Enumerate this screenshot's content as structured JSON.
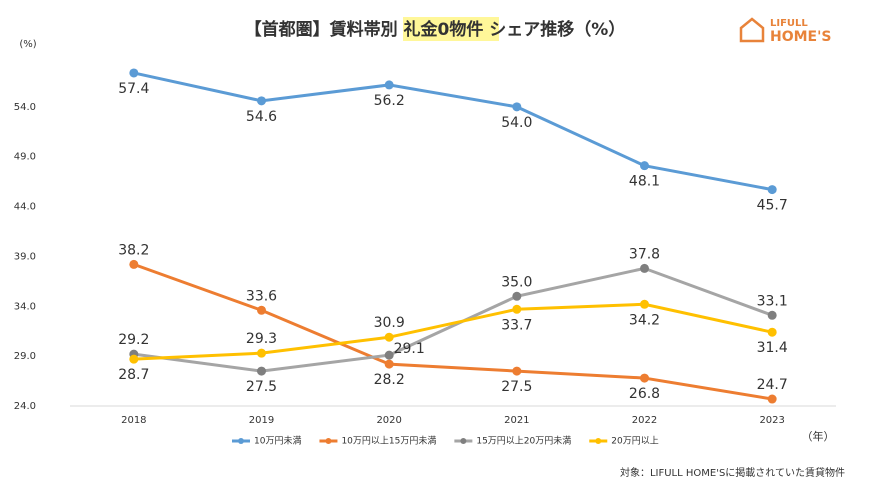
{
  "chart_data": {
    "type": "line",
    "title": "【首都圏】賃料帯別 礼金0物件 シェア推移（%）",
    "y_label": "(%)",
    "x_label": "（年）",
    "note": "対象：LIFULL HOME'Sに掲載されていた賃貸物件",
    "logo": {
      "top": "LIFULL",
      "bottom": "HOME'S"
    },
    "categories": [
      "2018",
      "2019",
      "2020",
      "2021",
      "2022",
      "2023"
    ],
    "ylim": [
      24,
      59.5
    ],
    "yticks": [
      {
        "value": 24,
        "label": "24.0"
      },
      {
        "value": 29,
        "label": "29.0"
      },
      {
        "value": 34,
        "label": "34.0"
      },
      {
        "value": 39,
        "label": "39.0"
      },
      {
        "value": 44,
        "label": "44.0"
      },
      {
        "value": 49,
        "label": "49.0"
      },
      {
        "value": 54,
        "label": "54.0"
      }
    ],
    "grid": false,
    "legend": "bottom",
    "series": [
      {
        "name": "10万円未満",
        "color": "#5b9bd5",
        "values": [
          57.4,
          54.6,
          56.2,
          54.0,
          48.1,
          45.7
        ],
        "value_labels": [
          "57.4",
          "54.6",
          "56.2",
          "54.0",
          "48.1",
          "45.7"
        ]
      },
      {
        "name": "10万円以上15万円未満",
        "color": "#ed7d31",
        "values": [
          38.2,
          33.6,
          28.2,
          27.5,
          26.8,
          24.7
        ],
        "value_labels": [
          "38.2",
          "33.6",
          "28.2",
          "27.5",
          "26.8",
          "24.7"
        ]
      },
      {
        "name": "15万円以上20万円未満",
        "color": "#a5a5a5",
        "values": [
          29.2,
          27.5,
          29.1,
          35.0,
          37.8,
          33.1
        ],
        "value_labels": [
          "29.2",
          "27.5",
          "29.1",
          "35.0",
          "37.8",
          "33.1"
        ]
      },
      {
        "name": "20万円以上",
        "color": "#ffc000",
        "values": [
          28.7,
          29.3,
          30.9,
          33.7,
          34.2,
          31.4
        ],
        "value_labels": [
          "28.7",
          "29.3",
          "30.9",
          "33.7",
          "34.2",
          "31.4"
        ]
      }
    ]
  }
}
